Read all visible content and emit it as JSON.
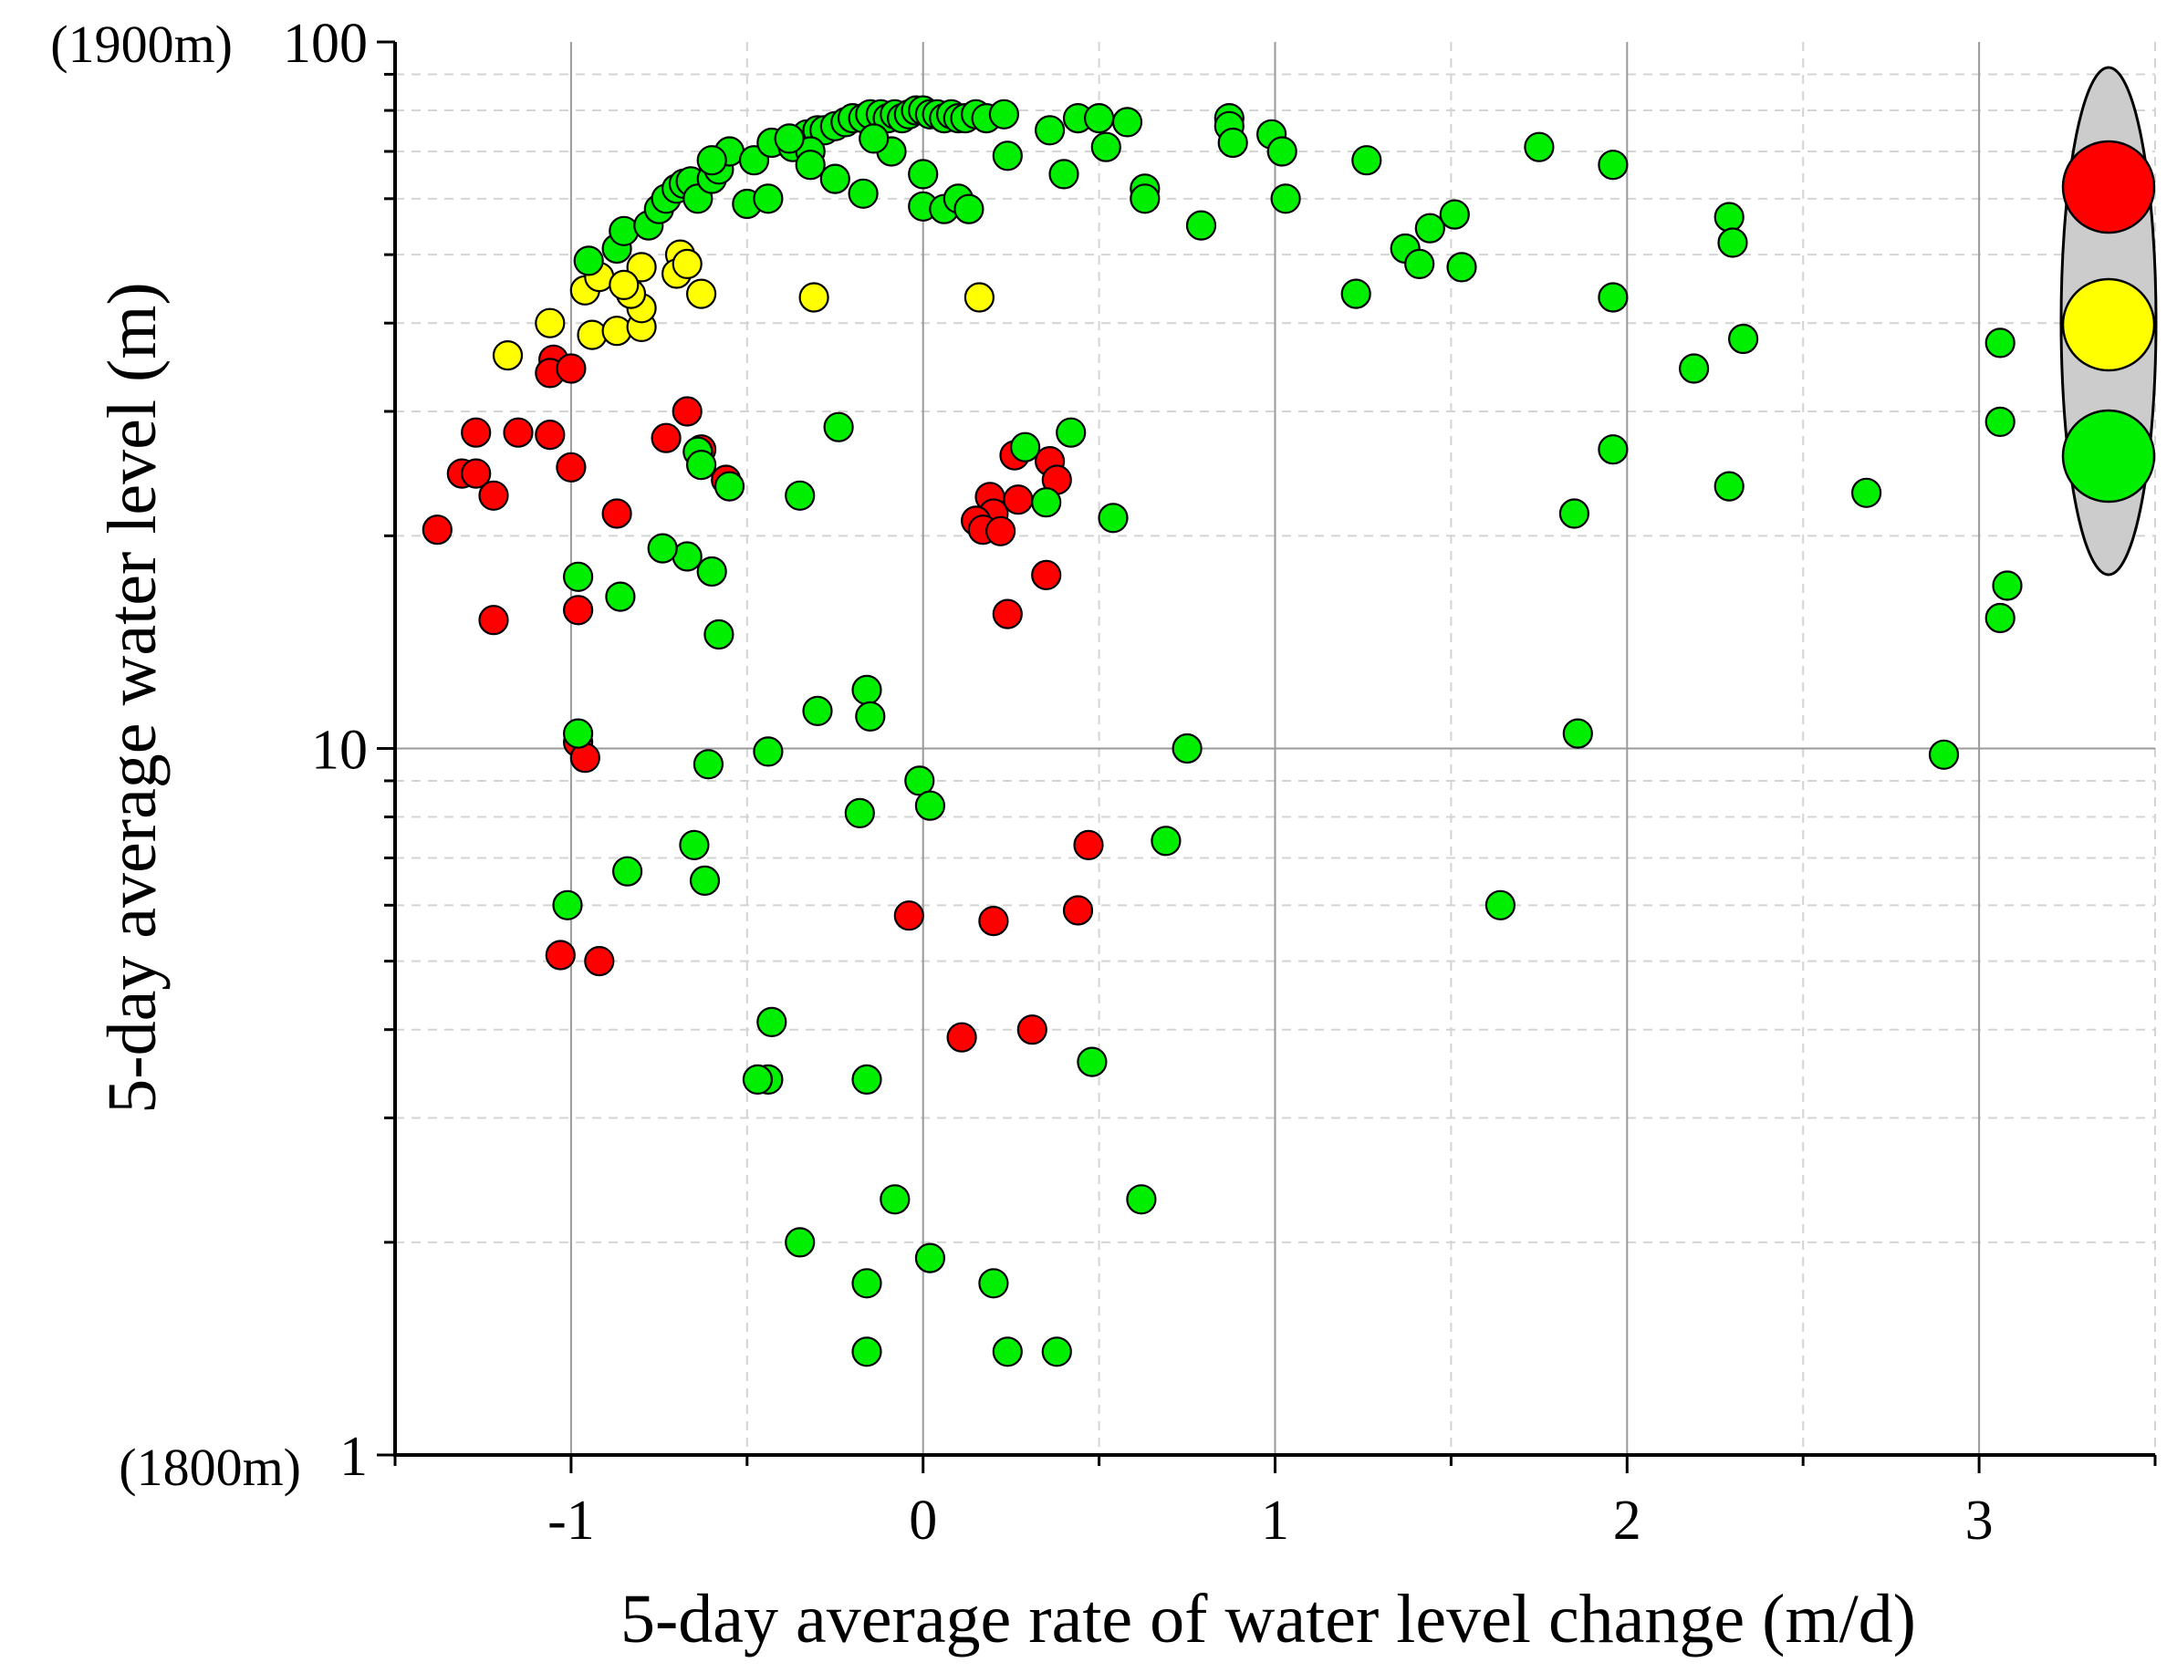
{
  "chart_data": {
    "type": "scatter",
    "xlabel": "5-day average rate of water level change (m/d)",
    "ylabel": "5-day average water level (m)",
    "x_scale": "linear",
    "y_scale": "log",
    "xlim": [
      -1.5,
      3.5
    ],
    "ylim": [
      1,
      100
    ],
    "x_ticks": [
      -1,
      0,
      1,
      2,
      3
    ],
    "x_tick_labels": [
      "-1",
      "0",
      "1",
      "2",
      "3"
    ],
    "y_ticks": [
      1,
      10,
      100
    ],
    "y_tick_labels": [
      "1",
      "10",
      "100"
    ],
    "y_top_reference": "(1900m)",
    "y_bottom_reference": "(1800m)",
    "grid": true,
    "legend": {
      "position": "top-right",
      "style": "traffic-light",
      "entries": [
        {
          "color": "#ff0000"
        },
        {
          "color": "#ffff00"
        },
        {
          "color": "#00ee00"
        }
      ]
    },
    "colors": {
      "red": "#ff0000",
      "yellow": "#ffff00",
      "green": "#00ee00"
    },
    "series": [
      {
        "name": "red",
        "color": "#ff0000",
        "points": [
          [
            -1.05,
            35.5
          ],
          [
            -1.06,
            34
          ],
          [
            -1.0,
            34.5
          ],
          [
            -1.27,
            28
          ],
          [
            -1.15,
            28
          ],
          [
            -1.06,
            27.8
          ],
          [
            -0.67,
            30
          ],
          [
            -0.73,
            27.5
          ],
          [
            -1.31,
            24.5
          ],
          [
            -1.27,
            24.5
          ],
          [
            -1.0,
            25
          ],
          [
            -0.63,
            26.5
          ],
          [
            -0.56,
            24
          ],
          [
            -1.38,
            20.4
          ],
          [
            -1.22,
            22.8
          ],
          [
            -0.87,
            21.5
          ],
          [
            -0.98,
            15.7
          ],
          [
            -1.22,
            15.2
          ],
          [
            -0.98,
            10.2
          ],
          [
            -0.96,
            9.7
          ],
          [
            0.26,
            26
          ],
          [
            0.36,
            25.5
          ],
          [
            0.38,
            24
          ],
          [
            0.19,
            22.7
          ],
          [
            0.27,
            22.5
          ],
          [
            0.2,
            21.5
          ],
          [
            0.15,
            21
          ],
          [
            0.17,
            20.4
          ],
          [
            0.22,
            20.3
          ],
          [
            0.35,
            17.6
          ],
          [
            0.24,
            15.5
          ],
          [
            0.47,
            7.3
          ],
          [
            -0.04,
            5.8
          ],
          [
            0.2,
            5.7
          ],
          [
            0.44,
            5.9
          ],
          [
            -1.03,
            5.1
          ],
          [
            -0.92,
            5.0
          ],
          [
            0.11,
            3.9
          ],
          [
            0.31,
            4.0
          ]
        ]
      },
      {
        "name": "yellow",
        "color": "#ffff00",
        "points": [
          [
            -1.18,
            36
          ],
          [
            -1.06,
            40
          ],
          [
            -0.94,
            38.5
          ],
          [
            -0.87,
            39
          ],
          [
            -0.8,
            39.5
          ],
          [
            -0.8,
            42
          ],
          [
            -0.83,
            44
          ],
          [
            -0.96,
            44.5
          ],
          [
            -0.92,
            46.5
          ],
          [
            -0.8,
            48
          ],
          [
            -0.69,
            50
          ],
          [
            -0.7,
            47
          ],
          [
            -0.63,
            44
          ],
          [
            -0.31,
            43.5
          ],
          [
            0.16,
            43.5
          ],
          [
            -0.67,
            48.5
          ],
          [
            -0.85,
            45.3
          ]
        ]
      },
      {
        "name": "green",
        "color": "#00ee00",
        "points": [
          [
            -0.95,
            49
          ],
          [
            -0.87,
            51
          ],
          [
            -0.85,
            54
          ],
          [
            -0.78,
            55
          ],
          [
            -0.75,
            58
          ],
          [
            -0.73,
            60
          ],
          [
            -0.7,
            62
          ],
          [
            -0.68,
            63
          ],
          [
            -0.66,
            63.5
          ],
          [
            -0.64,
            60
          ],
          [
            -0.6,
            64
          ],
          [
            -0.58,
            66
          ],
          [
            -0.55,
            70
          ],
          [
            -0.48,
            68
          ],
          [
            -0.43,
            72
          ],
          [
            -0.37,
            71
          ],
          [
            -0.33,
            74
          ],
          [
            -0.3,
            75
          ],
          [
            -0.28,
            75
          ],
          [
            -0.25,
            76
          ],
          [
            -0.22,
            77
          ],
          [
            -0.2,
            78
          ],
          [
            -0.17,
            78
          ],
          [
            -0.15,
            79
          ],
          [
            -0.12,
            79
          ],
          [
            -0.1,
            78
          ],
          [
            -0.08,
            79
          ],
          [
            -0.06,
            78
          ],
          [
            -0.04,
            79
          ],
          [
            -0.02,
            80
          ],
          [
            0.0,
            80
          ],
          [
            0.02,
            79
          ],
          [
            0.04,
            79
          ],
          [
            0.06,
            78
          ],
          [
            0.08,
            79
          ],
          [
            0.1,
            78
          ],
          [
            0.12,
            78
          ],
          [
            0.15,
            79
          ],
          [
            0.18,
            78
          ],
          [
            0.23,
            79
          ],
          [
            0.36,
            75
          ],
          [
            0.44,
            78
          ],
          [
            0.5,
            78
          ],
          [
            0.58,
            77
          ],
          [
            0.87,
            78
          ],
          [
            0.87,
            76
          ],
          [
            0.88,
            72
          ],
          [
            0.99,
            74
          ],
          [
            1.02,
            70
          ],
          [
            -0.6,
            68
          ],
          [
            -0.5,
            59
          ],
          [
            -0.44,
            60
          ],
          [
            -0.25,
            64
          ],
          [
            -0.17,
            61
          ],
          [
            -0.09,
            70
          ],
          [
            -0.14,
            73
          ],
          [
            -0.32,
            70
          ],
          [
            -0.38,
            73
          ],
          [
            -0.32,
            67
          ],
          [
            0.0,
            65
          ],
          [
            0.0,
            58.5
          ],
          [
            0.06,
            58
          ],
          [
            0.1,
            60
          ],
          [
            0.13,
            58
          ],
          [
            0.24,
            69
          ],
          [
            0.4,
            65
          ],
          [
            0.52,
            71
          ],
          [
            0.63,
            62
          ],
          [
            0.63,
            60
          ],
          [
            0.79,
            55
          ],
          [
            1.03,
            60
          ],
          [
            1.26,
            68
          ],
          [
            1.75,
            71
          ],
          [
            1.96,
            67
          ],
          [
            1.37,
            51
          ],
          [
            1.41,
            48.5
          ],
          [
            1.44,
            54.5
          ],
          [
            1.51,
            57
          ],
          [
            1.53,
            48
          ],
          [
            1.23,
            44
          ],
          [
            1.96,
            43.5
          ],
          [
            2.29,
            56.5
          ],
          [
            2.3,
            52
          ],
          [
            2.33,
            38
          ],
          [
            2.19,
            34.5
          ],
          [
            1.96,
            26.5
          ],
          [
            2.29,
            23.5
          ],
          [
            2.68,
            23
          ],
          [
            3.06,
            37.5
          ],
          [
            3.06,
            29
          ],
          [
            1.85,
            21.5
          ],
          [
            1.86,
            10.5
          ],
          [
            3.08,
            17
          ],
          [
            3.06,
            15.3
          ],
          [
            2.9,
            9.8
          ],
          [
            1.64,
            6.0
          ],
          [
            0.75,
            10
          ],
          [
            0.69,
            7.4
          ],
          [
            0.54,
            21.2
          ],
          [
            0.35,
            22.3
          ],
          [
            0.29,
            26.7
          ],
          [
            0.42,
            28
          ],
          [
            -0.24,
            28.5
          ],
          [
            -0.64,
            26.3
          ],
          [
            -0.63,
            25.2
          ],
          [
            -0.55,
            23.5
          ],
          [
            -0.35,
            22.8
          ],
          [
            -0.67,
            18.7
          ],
          [
            -0.6,
            17.8
          ],
          [
            -0.74,
            19.2
          ],
          [
            -0.86,
            16.4
          ],
          [
            -0.98,
            17.5
          ],
          [
            -0.58,
            14.5
          ],
          [
            -0.98,
            10.5
          ],
          [
            -0.3,
            11.3
          ],
          [
            -0.16,
            12.1
          ],
          [
            -0.15,
            11.1
          ],
          [
            -0.44,
            9.9
          ],
          [
            -0.61,
            9.5
          ],
          [
            -0.01,
            9.0
          ],
          [
            -0.18,
            8.1
          ],
          [
            0.02,
            8.3
          ],
          [
            -0.65,
            7.3
          ],
          [
            -0.62,
            6.5
          ],
          [
            -0.84,
            6.7
          ],
          [
            -1.01,
            6.0
          ],
          [
            -0.43,
            4.1
          ],
          [
            -0.44,
            3.4
          ],
          [
            -0.47,
            3.4
          ],
          [
            -0.16,
            3.4
          ],
          [
            0.48,
            3.6
          ],
          [
            -0.35,
            2.0
          ],
          [
            -0.08,
            2.3
          ],
          [
            0.62,
            2.3
          ],
          [
            0.02,
            1.9
          ],
          [
            -0.16,
            1.75
          ],
          [
            0.2,
            1.75
          ],
          [
            -0.16,
            1.4
          ],
          [
            0.24,
            1.4
          ],
          [
            0.38,
            1.4
          ]
        ]
      }
    ]
  }
}
